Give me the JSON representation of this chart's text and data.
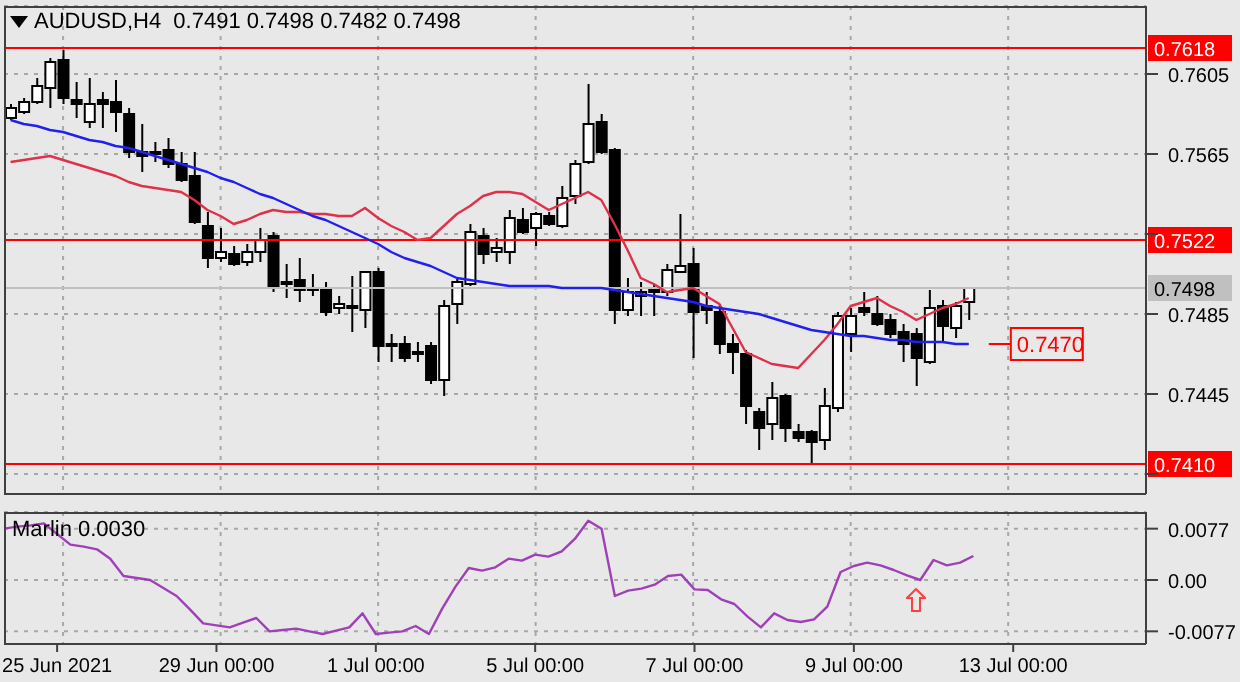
{
  "chart_data": [
    {
      "type": "candlestick",
      "title": "AUDUSD,H4  0.7491 0.7498 0.7482 0.7498",
      "categories": [
        null,
        null,
        null,
        null,
        null,
        null,
        null,
        null,
        null,
        null,
        null,
        null,
        null,
        null,
        null,
        null,
        null,
        null,
        null,
        null,
        null,
        null,
        null,
        null,
        null,
        null,
        null,
        null,
        null,
        null,
        null,
        null,
        null,
        null,
        null,
        null,
        null,
        null,
        null,
        null,
        null,
        null,
        null,
        null,
        null,
        null,
        null,
        null,
        null,
        null,
        null,
        null,
        null,
        null,
        null,
        null,
        null,
        null,
        null,
        null,
        null,
        null,
        null,
        null,
        null,
        null,
        null,
        null,
        null,
        null,
        null,
        null,
        null,
        null,
        null,
        null,
        null,
        null,
        null,
        null,
        null,
        null,
        null,
        null,
        null,
        null,
        null
      ],
      "ohlc": [
        [
          0.7583,
          0.759,
          0.7582,
          0.7588
        ],
        [
          0.7586,
          0.7593,
          0.7585,
          0.7591
        ],
        [
          0.7591,
          0.7603,
          0.759,
          0.7599
        ],
        [
          0.7598,
          0.7613,
          0.7588,
          0.7611
        ],
        [
          0.7612,
          0.7617,
          0.759,
          0.7593
        ],
        [
          0.7592,
          0.7601,
          0.7583,
          0.759
        ],
        [
          0.7581,
          0.7603,
          0.7578,
          0.759
        ],
        [
          0.7592,
          0.7596,
          0.7578,
          0.759
        ],
        [
          0.7591,
          0.7602,
          0.7576,
          0.7586
        ],
        [
          0.7585,
          0.7588,
          0.7563,
          0.7566
        ],
        [
          0.7566,
          0.758,
          0.7556,
          0.7564
        ],
        [
          0.7566,
          0.7571,
          0.7561,
          0.7565
        ],
        [
          0.7567,
          0.7573,
          0.7558,
          0.756
        ],
        [
          0.756,
          0.7566,
          0.7551,
          0.7552
        ],
        [
          0.7554,
          0.7566,
          0.753,
          0.7531
        ],
        [
          0.7529,
          0.7536,
          0.7508,
          0.7513
        ],
        [
          0.7513,
          0.7528,
          0.7511,
          0.7516
        ],
        [
          0.7515,
          0.7519,
          0.7509,
          0.751
        ],
        [
          0.7511,
          0.752,
          0.7509,
          0.7516
        ],
        [
          0.7516,
          0.7528,
          0.7511,
          0.7522
        ],
        [
          0.7524,
          0.7526,
          0.7496,
          0.7499
        ],
        [
          0.7501,
          0.751,
          0.7493,
          0.75
        ],
        [
          0.7502,
          0.7513,
          0.7491,
          0.7497
        ],
        [
          0.7498,
          0.7505,
          0.7494,
          0.7498
        ],
        [
          0.7497,
          0.7501,
          0.7484,
          0.7486
        ],
        [
          0.7488,
          0.7494,
          0.7485,
          0.749
        ],
        [
          0.7489,
          0.7504,
          0.7476,
          0.7488
        ],
        [
          0.7487,
          0.7506,
          0.7478,
          0.7506
        ],
        [
          0.7506,
          0.7508,
          0.7461,
          0.7469
        ],
        [
          0.747,
          0.7475,
          0.7461,
          0.7469
        ],
        [
          0.747,
          0.7474,
          0.7461,
          0.7463
        ],
        [
          0.7466,
          0.7471,
          0.7461,
          0.7466
        ],
        [
          0.7469,
          0.7471,
          0.745,
          0.7452
        ],
        [
          0.7452,
          0.7492,
          0.7444,
          0.7489
        ],
        [
          0.749,
          0.7503,
          0.748,
          0.7501
        ],
        [
          0.75,
          0.753,
          0.7499,
          0.7526
        ],
        [
          0.7524,
          0.7528,
          0.751,
          0.7515
        ],
        [
          0.7516,
          0.7523,
          0.7511,
          0.7518
        ],
        [
          0.7516,
          0.7537,
          0.751,
          0.7533
        ],
        [
          0.7532,
          0.7538,
          0.7525,
          0.7526
        ],
        [
          0.7528,
          0.7536,
          0.7519,
          0.7535
        ],
        [
          0.7534,
          0.7536,
          0.7529,
          0.753
        ],
        [
          0.7529,
          0.7549,
          0.7528,
          0.7543
        ],
        [
          0.7544,
          0.7562,
          0.754,
          0.756
        ],
        [
          0.7561,
          0.76,
          0.756,
          0.758
        ],
        [
          0.7581,
          0.7585,
          0.7565,
          0.7566
        ],
        [
          0.7567,
          0.7568,
          0.748,
          0.7487
        ],
        [
          0.7487,
          0.7503,
          0.7484,
          0.7496
        ],
        [
          0.7494,
          0.7501,
          0.7484,
          0.7496
        ],
        [
          0.7496,
          0.75,
          0.7484,
          0.7497
        ],
        [
          0.7496,
          0.751,
          0.7494,
          0.7507
        ],
        [
          0.7506,
          0.7535,
          0.7506,
          0.7509
        ],
        [
          0.751,
          0.7518,
          0.7463,
          0.7486
        ],
        [
          0.7489,
          0.7496,
          0.748,
          0.7487
        ],
        [
          0.7486,
          0.749,
          0.7465,
          0.747
        ],
        [
          0.747,
          0.7475,
          0.7455,
          0.7466
        ],
        [
          0.7465,
          0.7467,
          0.743,
          0.7439
        ],
        [
          0.7436,
          0.7438,
          0.7417,
          0.7428
        ],
        [
          0.743,
          0.7451,
          0.7422,
          0.7443
        ],
        [
          0.7444,
          0.7445,
          0.7421,
          0.7428
        ],
        [
          0.7426,
          0.743,
          0.7421,
          0.7423
        ],
        [
          0.7426,
          0.7427,
          0.741,
          0.7421
        ],
        [
          0.7422,
          0.7448,
          0.7417,
          0.7439
        ],
        [
          0.7438,
          0.7486,
          0.7436,
          0.7484
        ],
        [
          0.7475,
          0.7488,
          0.7466,
          0.7484
        ],
        [
          0.7488,
          0.7496,
          0.7484,
          0.7486
        ],
        [
          0.7485,
          0.7494,
          0.7479,
          0.748
        ],
        [
          0.7482,
          0.7485,
          0.7473,
          0.7475
        ],
        [
          0.7476,
          0.748,
          0.7461,
          0.747
        ],
        [
          0.7475,
          0.7478,
          0.7449,
          0.7463
        ],
        [
          0.7461,
          0.7497,
          0.746,
          0.7488
        ],
        [
          0.7489,
          0.7492,
          0.7471,
          0.7479
        ],
        [
          0.7478,
          0.7491,
          0.7473,
          0.7489
        ],
        [
          0.7491,
          0.7498,
          0.7482,
          0.7498
        ],
        null,
        null,
        null,
        null,
        null,
        null,
        null,
        null,
        null,
        null,
        null,
        null,
        null
      ],
      "series": [
        {
          "type": "line",
          "color": "#e0304a",
          "values": [
            0.7561,
            0.7562,
            0.7563,
            0.7564,
            0.7562,
            0.756,
            0.7558,
            0.7556,
            0.7554,
            0.7551,
            0.7549,
            0.7548,
            0.7547,
            0.7546,
            0.7542,
            0.7537,
            0.7534,
            0.753,
            0.7532,
            0.7535,
            0.7537,
            0.7536,
            0.7536,
            0.7535,
            0.7535,
            0.7534,
            0.7534,
            0.7538,
            0.7533,
            0.7529,
            0.7526,
            0.7522,
            0.7523,
            0.7529,
            0.7535,
            0.7539,
            0.7544,
            0.7546,
            0.7546,
            0.7545,
            0.7541,
            0.7537,
            0.754,
            0.7543,
            0.7546,
            0.7542,
            0.753,
            0.7517,
            0.7503,
            0.75,
            0.7496,
            0.7497,
            0.7498,
            0.7494,
            0.749,
            0.7478,
            0.7466,
            0.7463,
            0.746,
            0.7459,
            0.7458,
            0.7465,
            0.7472,
            0.748,
            0.7489,
            0.7491,
            0.7493,
            0.7489,
            0.7486,
            0.7482,
            0.7485,
            0.7488,
            0.749,
            0.7493,
            null,
            null,
            null,
            null,
            null,
            null,
            null,
            null,
            null,
            null,
            null,
            null,
            null
          ]
        },
        {
          "type": "line",
          "color": "#2020f0",
          "values": [
            0.7582,
            0.758,
            0.7579,
            0.7577,
            0.7576,
            0.7574,
            0.7572,
            0.7571,
            0.7569,
            0.7568,
            0.7566,
            0.7564,
            0.7562,
            0.756,
            0.7558,
            0.7556,
            0.7553,
            0.7551,
            0.7548,
            0.7545,
            0.7543,
            0.754,
            0.7537,
            0.7534,
            0.7532,
            0.7529,
            0.7526,
            0.7523,
            0.752,
            0.7516,
            0.7513,
            0.7511,
            0.7509,
            0.7506,
            0.7503,
            0.7502,
            0.7501,
            0.75,
            0.7499,
            0.7499,
            0.7499,
            0.7499,
            0.7498,
            0.7498,
            0.7498,
            0.7498,
            0.7497,
            0.7496,
            0.7495,
            0.7494,
            0.7493,
            0.7492,
            0.7491,
            0.7489,
            0.7488,
            0.7487,
            0.7486,
            0.7485,
            0.7483,
            0.7481,
            0.7479,
            0.7477,
            0.7476,
            0.7475,
            0.7474,
            0.7474,
            0.7473,
            0.7472,
            0.7472,
            0.7471,
            0.7471,
            0.7471,
            0.747,
            0.747,
            null,
            null,
            null,
            null,
            null,
            null,
            null,
            null,
            null,
            null,
            null,
            null,
            null
          ]
        }
      ],
      "tick_labels": "y",
      "ylim": [
        0.7395,
        0.7639
      ],
      "yticks": [
        {
          "value": 0.7405,
          "label": null
        },
        0.7445,
        0.7485,
        {
          "value": 0.7525,
          "label": null
        },
        0.7565,
        0.7605
      ],
      "ref_lines": [
        {
          "axis": "y",
          "value": 0.7618,
          "label": "0.7618",
          "color": "#ff0000"
        },
        {
          "axis": "y",
          "value": 0.7522,
          "label": "0.7522",
          "color": "#ff0000"
        },
        {
          "axis": "y",
          "value": 0.741,
          "label": "0.7410",
          "color": "#ff0000"
        },
        {
          "axis": "y",
          "value": 0.7498,
          "label": "0.7498",
          "color": "#c0c0c0"
        }
      ],
      "annotations": [
        {
          "text": "0.7470",
          "y": 0.747
        }
      ],
      "grid": true
    },
    {
      "type": "line",
      "title": "Marlin 0.0030",
      "categories": [
        null,
        null,
        null,
        null,
        "25 Jun 2021",
        null,
        null,
        null,
        null,
        null,
        null,
        null,
        null,
        null,
        null,
        null,
        "29 Jun 00:00",
        null,
        null,
        null,
        null,
        null,
        null,
        null,
        null,
        null,
        null,
        null,
        "1 Jul 00:00",
        null,
        null,
        null,
        null,
        null,
        null,
        null,
        null,
        null,
        null,
        null,
        "5 Jul 00:00",
        null,
        null,
        null,
        null,
        null,
        null,
        null,
        null,
        null,
        null,
        null,
        "7 Jul 00:00",
        null,
        null,
        null,
        null,
        null,
        null,
        null,
        null,
        null,
        null,
        null,
        "9 Jul 00:00",
        null,
        null,
        null,
        null,
        null,
        null,
        null,
        null,
        null,
        null,
        null,
        "13 Jul 00:00",
        null,
        null,
        null,
        null,
        null,
        null,
        null,
        null,
        null,
        null
      ],
      "series": [
        {
          "color": "#a040b8",
          "values": [
            0.0077,
            0.008,
            0.0082,
            0.0085,
            0.0069,
            0.0053,
            0.005,
            0.0046,
            0.0032,
            0.0006,
            0.0003,
            0,
            -0.0012,
            -0.0024,
            -0.0044,
            -0.0065,
            -0.0068,
            -0.0071,
            -0.0064,
            -0.0057,
            -0.0077,
            -0.0075,
            -0.0073,
            -0.0077,
            -0.0081,
            -0.0076,
            -0.0071,
            -0.005,
            -0.0081,
            -0.0079,
            -0.0077,
            -0.0069,
            -0.0081,
            -0.0043,
            -0.001,
            0.0018,
            0.0014,
            0.0019,
            0.0032,
            0.0029,
            0.0038,
            0.0035,
            0.0043,
            0.0062,
            0.0089,
            0.0077,
            -0.0024,
            -0.0016,
            -0.0013,
            -0.0007,
            0.0006,
            0.0008,
            -0.0014,
            -0.0015,
            -0.0029,
            -0.0036,
            -0.0055,
            -0.0071,
            -0.005,
            -0.006,
            -0.0063,
            -0.0059,
            -0.004,
            0.0012,
            0.0021,
            0.0026,
            0.0022,
            0.0015,
            0.0007,
            0,
            0.003,
            0.0022,
            0.0026,
            0.0036,
            null,
            null,
            null,
            null,
            null,
            null,
            null,
            null,
            null,
            null,
            null,
            null,
            null
          ]
        }
      ],
      "ylim": [
        -0.0096,
        0.0102
      ],
      "yticks": [
        -0.0077,
        {
          "value": 0,
          "label": "0.00"
        },
        0.0077
      ],
      "grid": true
    }
  ]
}
